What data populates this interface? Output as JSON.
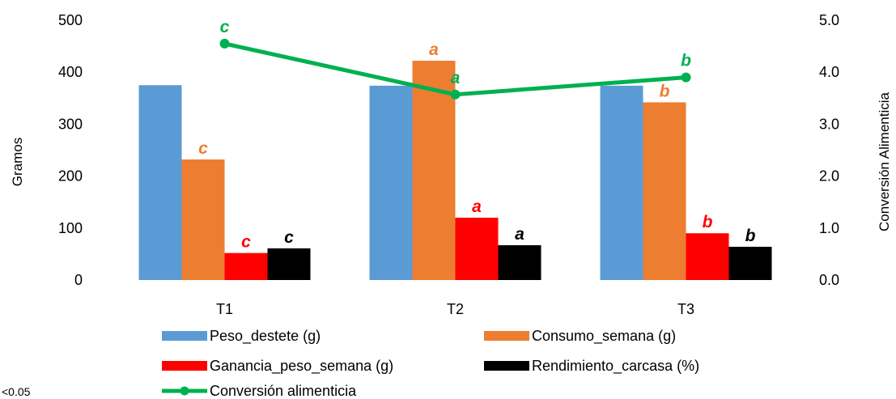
{
  "chart_data": {
    "type": "bar",
    "categories": [
      "T1",
      "T2",
      "T3"
    ],
    "series": [
      {
        "name": "Peso_destete (g)",
        "axis": "left",
        "color": "#5B9BD5",
        "values": [
          375,
          374,
          374
        ],
        "labels": [
          "",
          "",
          ""
        ],
        "label_color": "#5B9BD5"
      },
      {
        "name": "Consumo_semana (g)",
        "axis": "left",
        "color": "#ED7D31",
        "values": [
          232,
          422,
          342
        ],
        "labels": [
          "c",
          "a",
          "b"
        ],
        "label_color": "#ED7D31"
      },
      {
        "name": "Ganancia_peso_semana (g)",
        "axis": "left",
        "color": "#FF0000",
        "values": [
          52,
          120,
          90
        ],
        "labels": [
          "c",
          "a",
          "b"
        ],
        "label_color": "#FF0000"
      },
      {
        "name": "Rendimiento_carcasa (%)",
        "axis": "left",
        "color": "#000000",
        "values": [
          61,
          67,
          64
        ],
        "labels": [
          "c",
          "a",
          "b"
        ],
        "label_color": "#000000"
      }
    ],
    "line_series": [
      {
        "name": "Conversión alimenticia",
        "axis": "right",
        "color": "#00B050",
        "values": [
          4.55,
          3.57,
          3.9
        ],
        "labels": [
          "c",
          "a",
          "b"
        ],
        "label_color": "#00B050"
      }
    ],
    "ylabel": "Gramos",
    "y2label": "Conversión Alimenticia",
    "ylim": [
      0,
      500
    ],
    "y2lim": [
      0,
      5.0
    ],
    "yticks": [
      "0",
      "100",
      "200",
      "300",
      "400",
      "500"
    ],
    "y2ticks": [
      "0.0",
      "1.0",
      "2.0",
      "3.0",
      "4.0",
      "5.0"
    ],
    "legend_position": "bottom",
    "grid": false
  },
  "footnote": "<0.05"
}
